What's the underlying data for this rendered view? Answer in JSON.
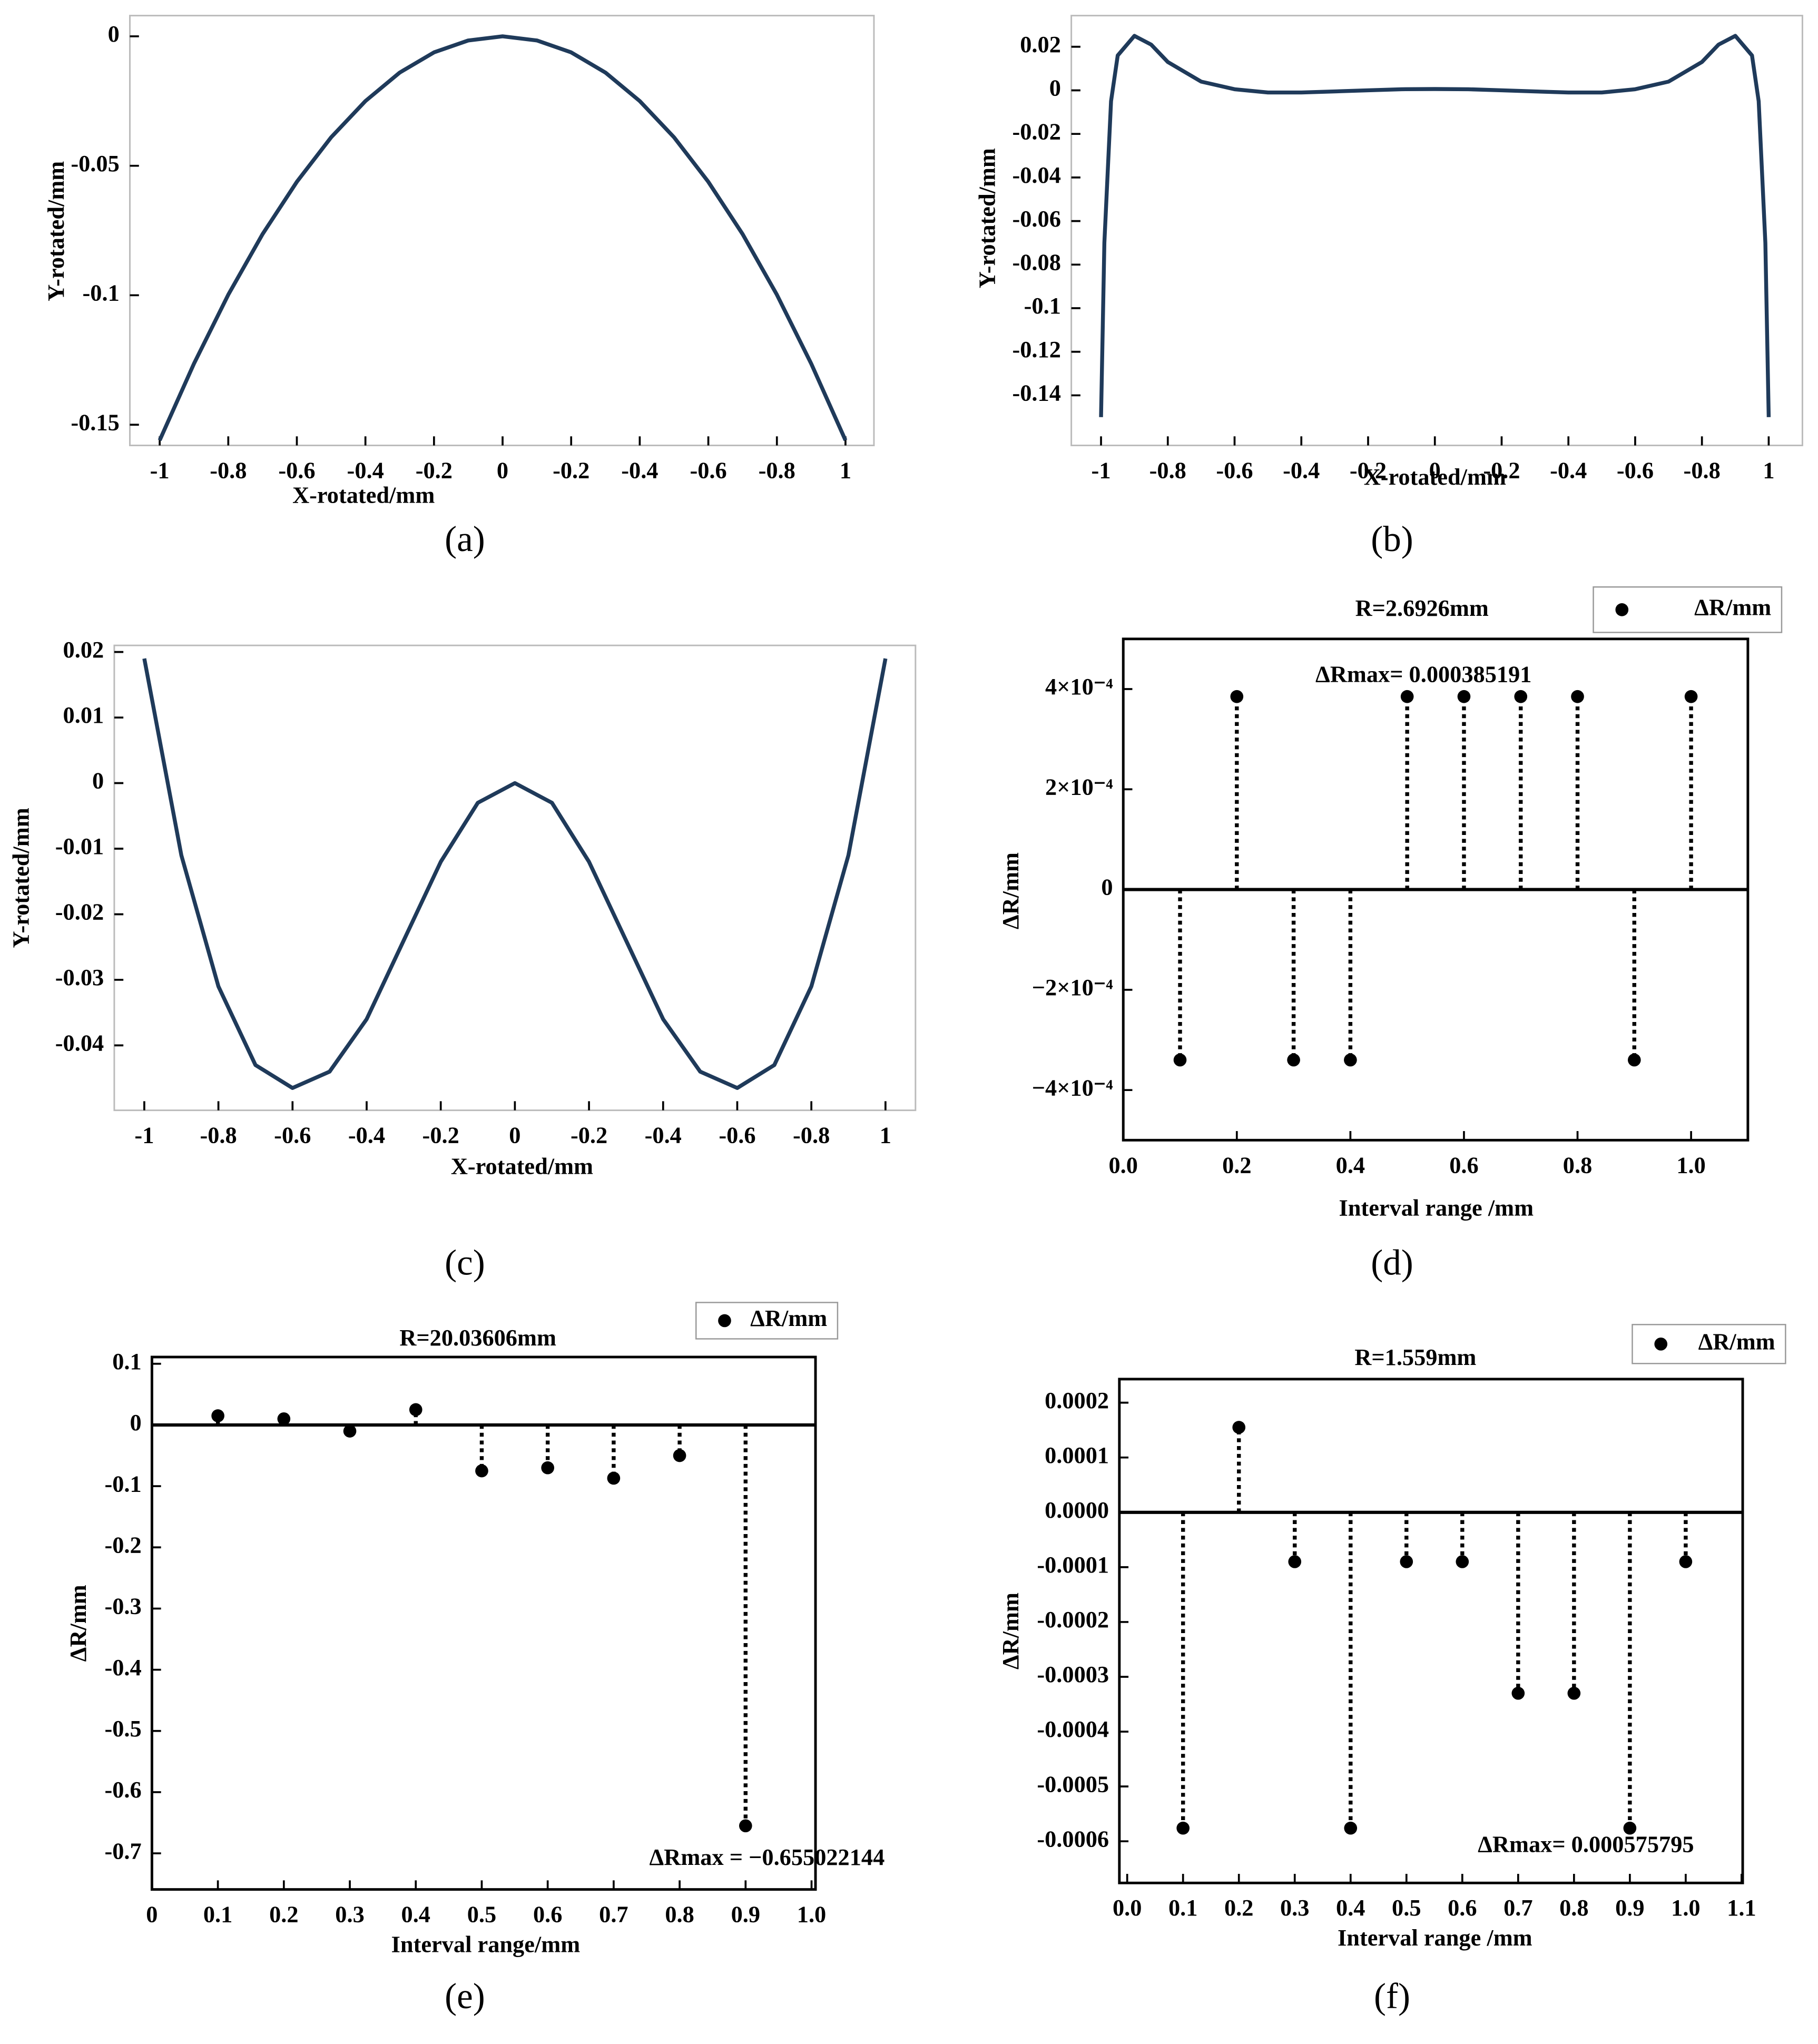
{
  "chart_data": [
    {
      "type": "line",
      "label": "(a)",
      "x_label": "X-rotated/mm",
      "y_label": "Y-rotated/mm",
      "color": "#1f3a5a",
      "x": [
        -1,
        -0.9,
        -0.8,
        -0.7,
        -0.6,
        -0.5,
        -0.4,
        -0.3,
        -0.2,
        -0.1,
        0,
        0.1,
        0.2,
        0.3,
        0.4,
        0.5,
        0.6,
        0.7,
        0.8,
        0.9,
        1
      ],
      "values": [
        -0.156,
        -0.1264,
        -0.0998,
        -0.0764,
        -0.0562,
        -0.039,
        -0.025,
        -0.014,
        -0.0062,
        -0.0016,
        0,
        -0.0016,
        -0.0062,
        -0.014,
        -0.025,
        -0.039,
        -0.0562,
        -0.0764,
        -0.0998,
        -0.1264,
        -0.156
      ],
      "xlim": [
        -1.087,
        1.083
      ],
      "ylim": [
        -0.158,
        0.008
      ],
      "xticks": [
        -1,
        -0.8,
        -0.6,
        -0.4,
        -0.2,
        0,
        {
          "value": 0.2,
          "label": "-0.2"
        },
        {
          "value": 0.4,
          "label": "-0.4"
        },
        {
          "value": 0.6,
          "label": "-0.6"
        },
        {
          "value": 0.8,
          "label": "-0.8"
        },
        1
      ],
      "yticks": [
        0,
        -0.05,
        -0.1,
        -0.15
      ]
    },
    {
      "type": "line",
      "label": "(b)",
      "x_label": "X-rotated/mm",
      "y_label": "Y-rotated/mm",
      "color": "#1f3a5a",
      "x": [
        -1,
        -0.99,
        -0.97,
        -0.95,
        -0.9,
        -0.85,
        -0.8,
        -0.7,
        -0.6,
        -0.5,
        -0.4,
        -0.3,
        -0.2,
        -0.1,
        0,
        0.1,
        0.2,
        0.3,
        0.4,
        0.5,
        0.6,
        0.7,
        0.8,
        0.85,
        0.9,
        0.95,
        0.97,
        0.99,
        1
      ],
      "values": [
        -0.15,
        -0.07,
        -0.005,
        0.016,
        0.025,
        0.021,
        0.013,
        0.004,
        0.0005,
        -0.001,
        -0.001,
        -0.0005,
        0,
        0.0005,
        0.0006,
        0.0005,
        0,
        -0.0005,
        -0.001,
        -0.001,
        0.0005,
        0.004,
        0.013,
        0.021,
        0.025,
        0.016,
        -0.005,
        -0.07,
        -0.15
      ],
      "xlim": [
        -1.089,
        1.101
      ],
      "ylim": [
        -0.163,
        0.0343
      ],
      "xticks": [
        -1,
        -0.8,
        -0.6,
        -0.4,
        -0.2,
        0,
        {
          "value": 0.2,
          "label": "-0.2"
        },
        {
          "value": 0.4,
          "label": "-0.4"
        },
        {
          "value": 0.6,
          "label": "-0.6"
        },
        {
          "value": 0.8,
          "label": "-0.8"
        },
        1
      ],
      "yticks": [
        0.02,
        0,
        -0.02,
        -0.04,
        -0.06,
        -0.08,
        -0.1,
        -0.12,
        -0.14
      ]
    },
    {
      "type": "line",
      "label": "(c)",
      "x_label": "X-rotated/mm",
      "y_label": "Y-rotated/mm",
      "color": "#1f3a5a",
      "x": [
        -1,
        -0.9,
        -0.8,
        -0.7,
        -0.6,
        -0.5,
        -0.4,
        -0.3,
        -0.2,
        -0.1,
        0,
        0.1,
        0.2,
        0.3,
        0.4,
        0.5,
        0.6,
        0.7,
        0.8,
        0.9,
        1
      ],
      "values": [
        0.019,
        -0.011,
        -0.031,
        -0.043,
        -0.0465,
        -0.044,
        -0.036,
        -0.024,
        -0.012,
        -0.003,
        0,
        -0.003,
        -0.012,
        -0.024,
        -0.036,
        -0.044,
        -0.0465,
        -0.043,
        -0.031,
        -0.011,
        0.019
      ],
      "xlim": [
        -1.081,
        1.081
      ],
      "ylim": [
        -0.0499,
        0.021
      ],
      "xticks": [
        -1,
        -0.8,
        -0.6,
        -0.4,
        -0.2,
        0,
        {
          "value": 0.2,
          "label": "-0.2"
        },
        {
          "value": 0.4,
          "label": "-0.4"
        },
        {
          "value": 0.6,
          "label": "-0.6"
        },
        {
          "value": 0.8,
          "label": "-0.8"
        },
        1
      ],
      "yticks": [
        0.02,
        0.01,
        0,
        -0.01,
        -0.02,
        -0.03,
        -0.04
      ]
    },
    {
      "type": "stem",
      "label": "(d)",
      "title": "R=2.6926mm",
      "legend": "ΔR/mm",
      "annotation": "ΔRmax= 0.000385191",
      "x_label": "Interval range /mm",
      "y_label": "ΔR/mm",
      "color": "#000000",
      "x": [
        0.1,
        0.2,
        0.3,
        0.4,
        0.5,
        0.6,
        0.7,
        0.8,
        0.9,
        1.0
      ],
      "values": [
        -0.00034,
        0.000385,
        -0.00034,
        -0.00034,
        0.000385,
        0.000385,
        0.000385,
        0.000385,
        -0.00034,
        0.000385
      ],
      "xlim": [
        0,
        1.1
      ],
      "ylim": [
        -0.0005,
        0.0005
      ],
      "xticks": [
        {
          "value": 0,
          "label": "0.0"
        },
        0.2,
        0.4,
        0.6,
        0.8,
        {
          "value": 1,
          "label": "1.0"
        }
      ],
      "yticks": [
        {
          "value": 0.0004,
          "label": "4×10⁻⁴"
        },
        {
          "value": 0.0002,
          "label": "2×10⁻⁴"
        },
        0,
        {
          "value": -0.0002,
          "label": "−2×10⁻⁴"
        },
        {
          "value": -0.0004,
          "label": "−4×10⁻⁴"
        }
      ]
    },
    {
      "type": "stem",
      "label": "(e)",
      "title": "R=20.03606mm",
      "legend": "ΔR/mm",
      "annotation": "ΔRmax = −0.655022144",
      "x_label": "Interval range/mm",
      "y_label": "ΔR/mm",
      "color": "#000000",
      "x": [
        0.1,
        0.2,
        0.3,
        0.4,
        0.5,
        0.6,
        0.7,
        0.8,
        0.9
      ],
      "values": [
        0.015,
        0.01,
        -0.01,
        0.025,
        -0.075,
        -0.07,
        -0.087,
        -0.05,
        -0.655
      ],
      "xlim": [
        0,
        1.006
      ],
      "ylim": [
        -0.759,
        0.111
      ],
      "xticks": [
        0,
        0.1,
        0.2,
        0.3,
        0.4,
        0.5,
        0.6,
        0.7,
        0.8,
        0.9,
        {
          "value": 1,
          "label": "1.0"
        }
      ],
      "yticks": [
        0.1,
        0,
        -0.1,
        -0.2,
        -0.3,
        -0.4,
        -0.5,
        -0.6,
        -0.7
      ]
    },
    {
      "type": "stem",
      "label": "(f)",
      "title": "R=1.559mm",
      "legend": "ΔR/mm",
      "annotation": "ΔRmax= 0.000575795",
      "x_label": "Interval range /mm",
      "y_label": "ΔR/mm",
      "color": "#000000",
      "x": [
        0.1,
        0.2,
        0.3,
        0.4,
        0.5,
        0.6,
        0.7,
        0.8,
        0.9,
        1.0
      ],
      "values": [
        -0.000576,
        0.000155,
        -9e-05,
        -0.000576,
        -9e-05,
        -9e-05,
        -0.00033,
        -0.00033,
        -0.000576,
        -9e-05
      ],
      "xlim": [
        -0.014,
        1.102
      ],
      "ylim": [
        -0.000676,
        0.000243
      ],
      "xticks": [
        {
          "value": 0,
          "label": "0.0"
        },
        0.1,
        0.2,
        0.3,
        0.4,
        0.5,
        0.6,
        0.7,
        0.8,
        0.9,
        {
          "value": 1,
          "label": "1.0"
        },
        1.1
      ],
      "yticks": [
        0.0002,
        0.0001,
        {
          "value": 0,
          "label": "0.0000"
        },
        {
          "value": -0.0001,
          "label": "-0.0001"
        },
        {
          "value": -0.0002,
          "label": "-0.0002"
        },
        {
          "value": -0.0003,
          "label": "-0.0003"
        },
        {
          "value": -0.0004,
          "label": "-0.0004"
        },
        {
          "value": -0.0005,
          "label": "-0.0005"
        },
        {
          "value": -0.0006,
          "label": "-0.0006"
        }
      ]
    }
  ]
}
